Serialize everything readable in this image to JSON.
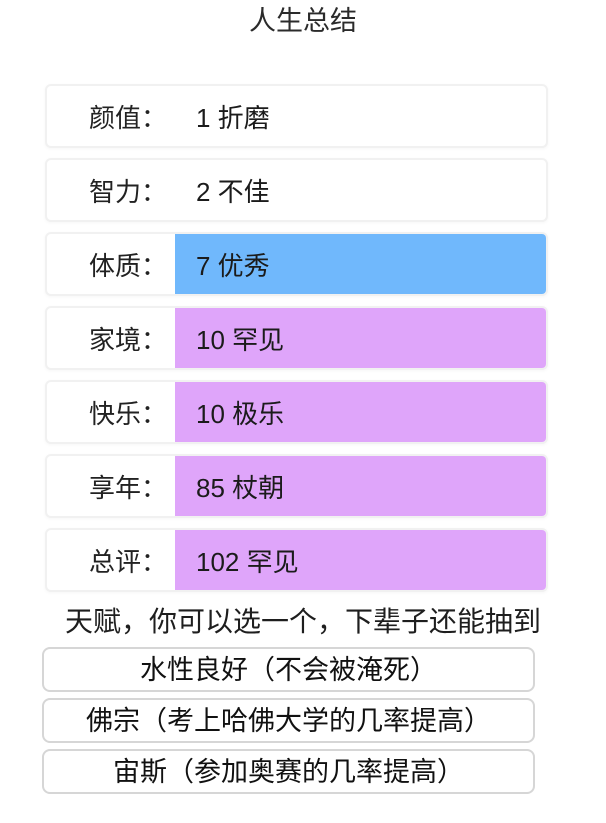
{
  "title": "人生总结",
  "colors": {
    "highlight_blue": "#70b8fc",
    "highlight_purple": "#dfa5fa",
    "card_border": "#f1f1f1",
    "button_border": "#d6d6d6"
  },
  "stats": {
    "rows": [
      {
        "label": "颜值：",
        "value": "1 折磨",
        "color": ""
      },
      {
        "label": "智力：",
        "value": "2 不佳",
        "color": ""
      },
      {
        "label": "体质：",
        "value": "7 优秀",
        "color": "#70b8fc"
      },
      {
        "label": "家境：",
        "value": "10 罕见",
        "color": "#dfa5fa"
      },
      {
        "label": "快乐：",
        "value": "10 极乐",
        "color": "#dfa5fa"
      },
      {
        "label": "享年：",
        "value": "85 杖朝",
        "color": "#dfa5fa"
      },
      {
        "label": "总评：",
        "value": "102 罕见",
        "color": "#dfa5fa"
      }
    ]
  },
  "talents": {
    "heading": "天赋，你可以选一个，下辈子还能抽到",
    "options": [
      {
        "label": "水性良好（不会被淹死）"
      },
      {
        "label": "佛宗（考上哈佛大学的几率提高）"
      },
      {
        "label": "宙斯（参加奥赛的几率提高）"
      }
    ]
  }
}
